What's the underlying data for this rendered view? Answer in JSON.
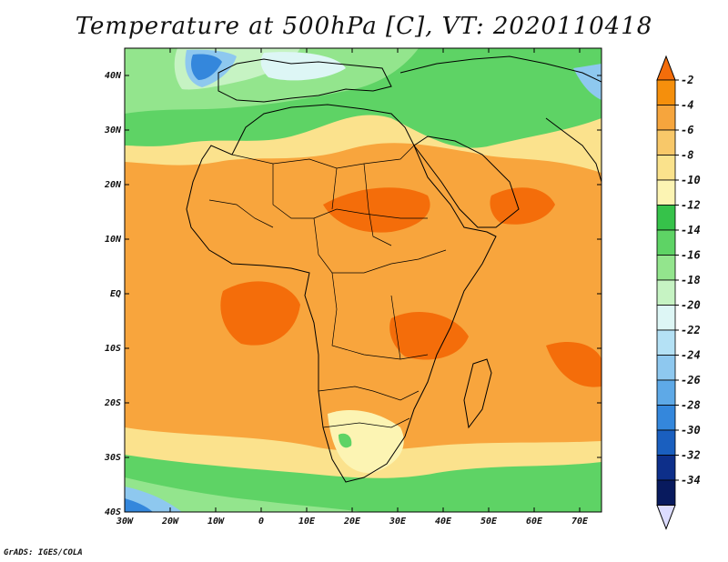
{
  "title": "Temperature at 500hPa [C], VT: 2020110418",
  "footer": "GrADS: IGES/COLA",
  "map": {
    "lon_ticks": [
      "30W",
      "20W",
      "10W",
      "0",
      "10E",
      "20E",
      "30E",
      "40E",
      "50E",
      "60E",
      "70E"
    ],
    "lat_ticks": [
      "40N",
      "30N",
      "20N",
      "10N",
      "EQ",
      "10S",
      "20S",
      "30S",
      "40S"
    ]
  },
  "colorbar": {
    "labels": [
      "-2",
      "-4",
      "-6",
      "-8",
      "-10",
      "-12",
      "-14",
      "-16",
      "-18",
      "-20",
      "-22",
      "-24",
      "-26",
      "-28",
      "-30",
      "-32",
      "-34"
    ],
    "colors": [
      "#f46d0a",
      "#f58f0c",
      "#f6a53d",
      "#f8c869",
      "#fae28c",
      "#fcf4b3",
      "#36c24a",
      "#5ed365",
      "#93e58d",
      "#c6f3c3",
      "#ddf6f5",
      "#b4e1f5",
      "#8ec8ef",
      "#5ea9e7",
      "#3487dc",
      "#1a5fbf",
      "#0d2f8a",
      "#081a5e",
      "#dcdcff"
    ]
  }
}
